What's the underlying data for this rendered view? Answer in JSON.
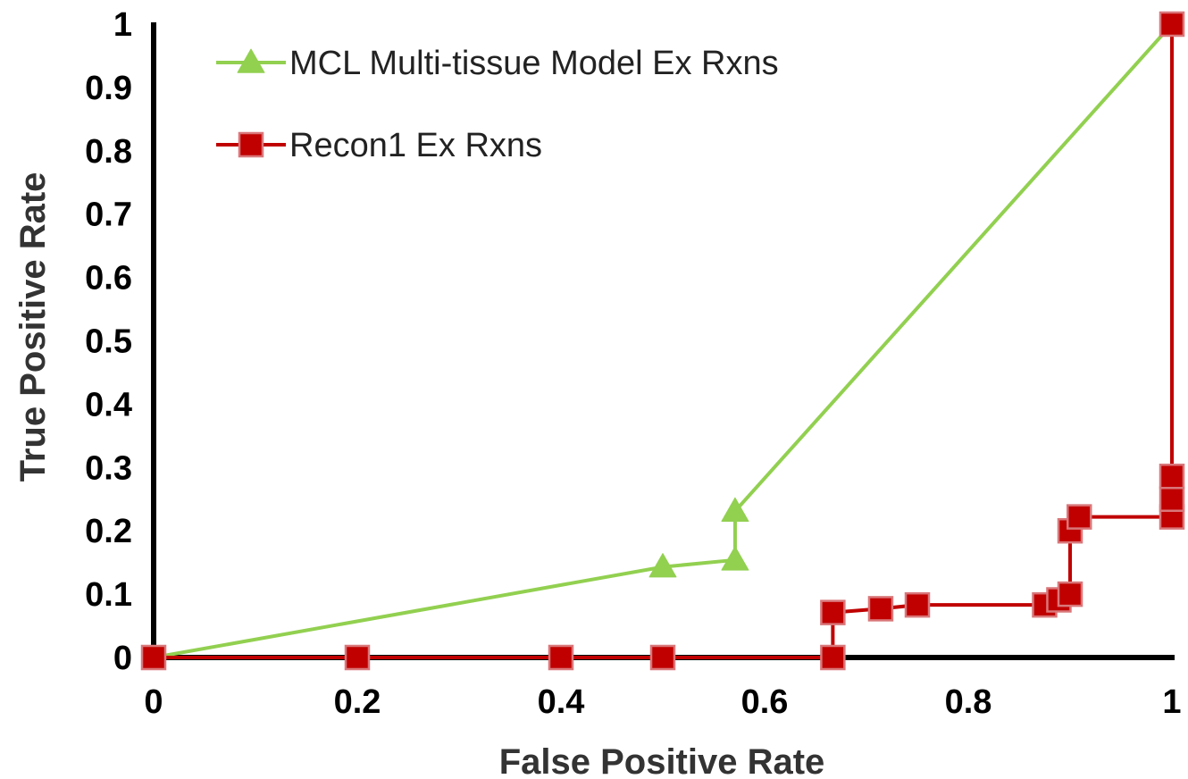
{
  "chart_data": {
    "type": "line",
    "xlabel": "False Positive Rate",
    "ylabel": "True Positive Rate",
    "xlim": [
      0,
      1
    ],
    "ylim": [
      0,
      1
    ],
    "xticks": [
      "0",
      "0.2",
      "0.4",
      "0.6",
      "0.8",
      "1"
    ],
    "yticks": [
      "0",
      "0.1",
      "0.2",
      "0.3",
      "0.4",
      "0.5",
      "0.6",
      "0.7",
      "0.8",
      "0.9",
      "1"
    ],
    "grid": false,
    "legend_position": "top-left",
    "series": [
      {
        "name": "MCL Multi-tissue Model Ex Rxns",
        "color": "#92d050",
        "marker": "triangle",
        "show_marker": [
          false,
          true,
          true,
          true,
          false
        ],
        "x": [
          0,
          0.5,
          0.571,
          0.571,
          1
        ],
        "y": [
          0,
          0.143,
          0.154,
          0.231,
          1
        ]
      },
      {
        "name": "Recon1 Ex Rxns",
        "color": "#c00000",
        "marker": "square",
        "x": [
          0,
          0.2,
          0.4,
          0.5,
          0.667,
          0.667,
          0.714,
          0.75,
          0.875,
          0.889,
          0.9,
          0.9,
          0.909,
          1,
          1,
          1,
          1
        ],
        "y": [
          0,
          0,
          0,
          0,
          0,
          0.071,
          0.077,
          0.083,
          0.083,
          0.091,
          0.1,
          0.2,
          0.222,
          0.222,
          0.25,
          0.286,
          1
        ]
      }
    ]
  }
}
